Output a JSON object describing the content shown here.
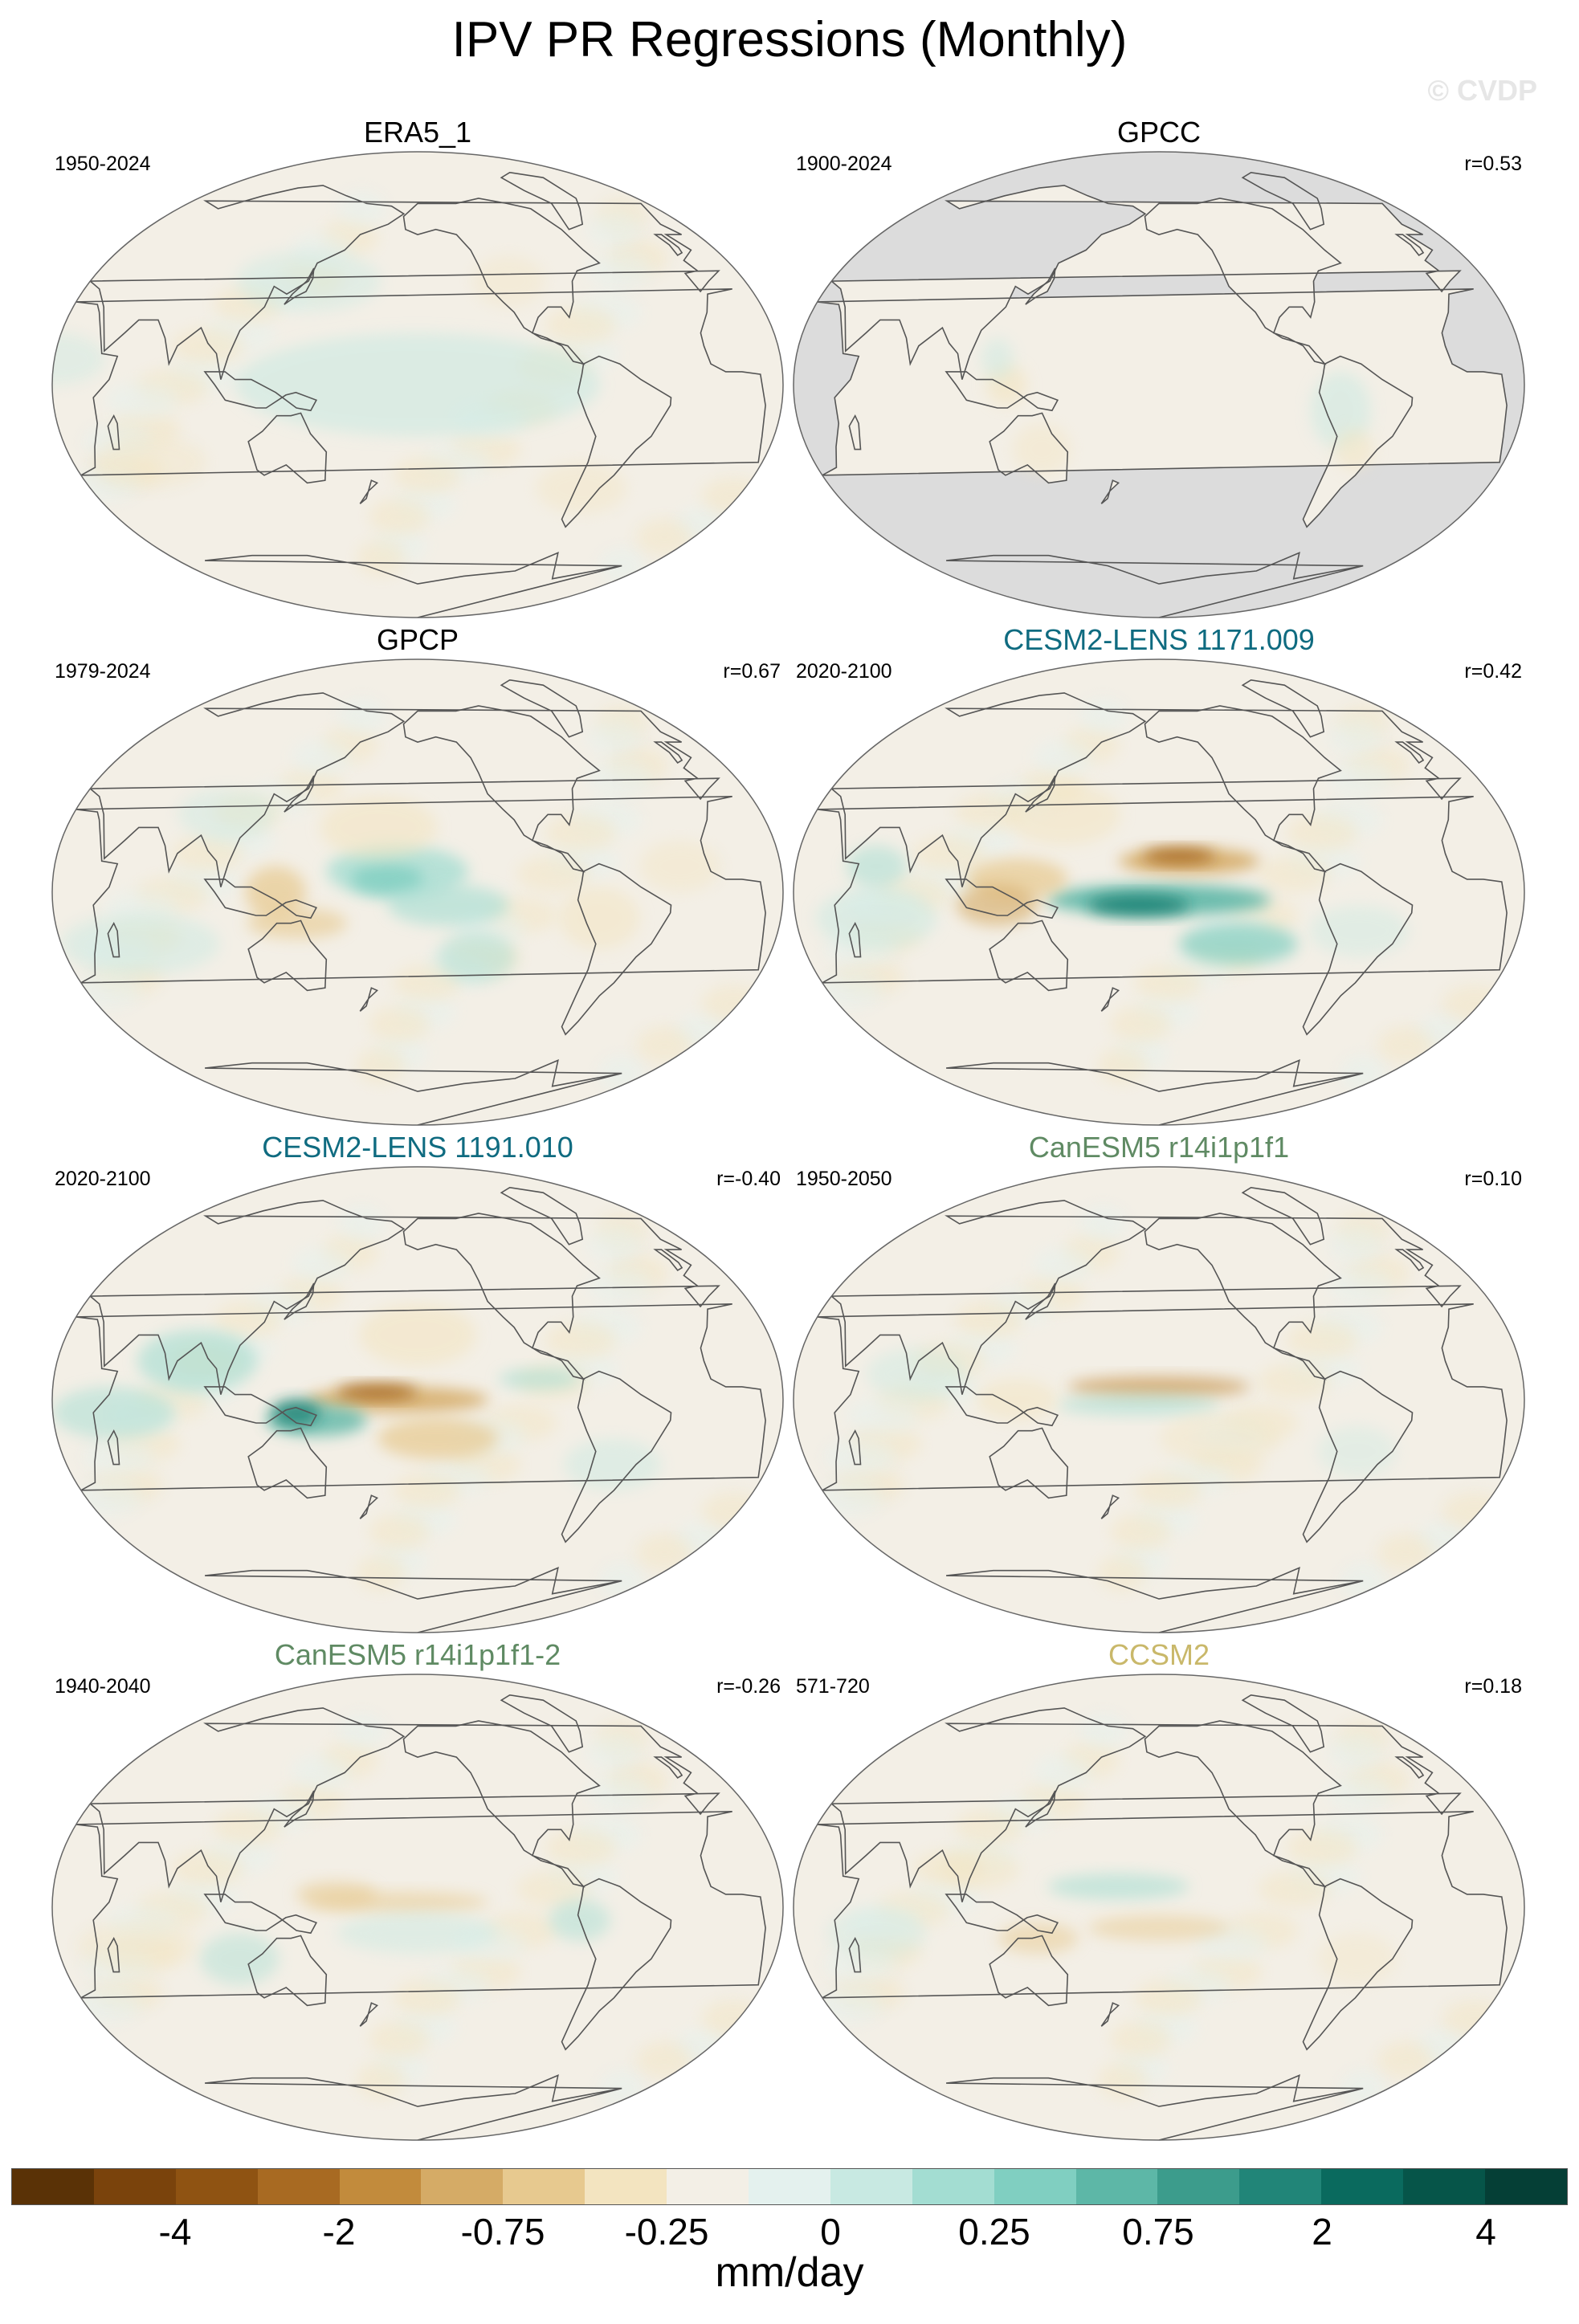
{
  "title": "IPV PR Regressions (Monthly)",
  "watermark": "© CVDP",
  "colors": {
    "land_grey": "#dcdcdc",
    "ocean_neutral": "#f3efe6",
    "coast": "#555555"
  },
  "panels": [
    {
      "name": "ERA5_1",
      "years": "1950-2024",
      "r": "",
      "title_color": "#000000",
      "pattern": "era5",
      "masked_ocean": false
    },
    {
      "name": "GPCC",
      "years": "1900-2024",
      "r": "r=0.53",
      "title_color": "#000000",
      "pattern": "gpcc",
      "masked_ocean": true
    },
    {
      "name": "GPCP",
      "years": "1979-2024",
      "r": "r=0.67",
      "title_color": "#000000",
      "pattern": "gpcp",
      "masked_ocean": false
    },
    {
      "name": "CESM2-LENS 1171.009",
      "years": "2020-2100",
      "r": "r=0.42",
      "title_color": "#0f6b80",
      "pattern": "cesm_pos",
      "masked_ocean": false
    },
    {
      "name": "CESM2-LENS 1191.010",
      "years": "2020-2100",
      "r": "r=-0.40",
      "title_color": "#0f6b80",
      "pattern": "cesm_neg",
      "masked_ocean": false
    },
    {
      "name": "CanESM5 r14i1p1f1",
      "years": "1950-2050",
      "r": "r=0.10",
      "title_color": "#5f8a63",
      "pattern": "can1",
      "masked_ocean": false
    },
    {
      "name": "CanESM5 r14i1p1f1-2",
      "years": "1940-2040",
      "r": "r=-0.26",
      "title_color": "#5f8a63",
      "pattern": "can2",
      "masked_ocean": false
    },
    {
      "name": "CCSM2",
      "years": "571-720",
      "r": "r=0.18",
      "title_color": "#c9b86a",
      "pattern": "ccsm2",
      "masked_ocean": false
    }
  ],
  "colorbar": {
    "colors": [
      "#5a3206",
      "#7a430c",
      "#8f5312",
      "#a86a22",
      "#c28b3c",
      "#d5ab66",
      "#e7c98f",
      "#f3e4c0",
      "#f3efe6",
      "#e4f1ee",
      "#c8e9e2",
      "#a3ddd2",
      "#80cfc1",
      "#5db7a7",
      "#3c9c8c",
      "#218578",
      "#0a6a5e",
      "#065549",
      "#053f36"
    ],
    "tick_labels": [
      "-4",
      "-2",
      "-0.75",
      "-0.25",
      "0",
      "0.25",
      "0.75",
      "2",
      "4"
    ],
    "units": "mm/day"
  }
}
